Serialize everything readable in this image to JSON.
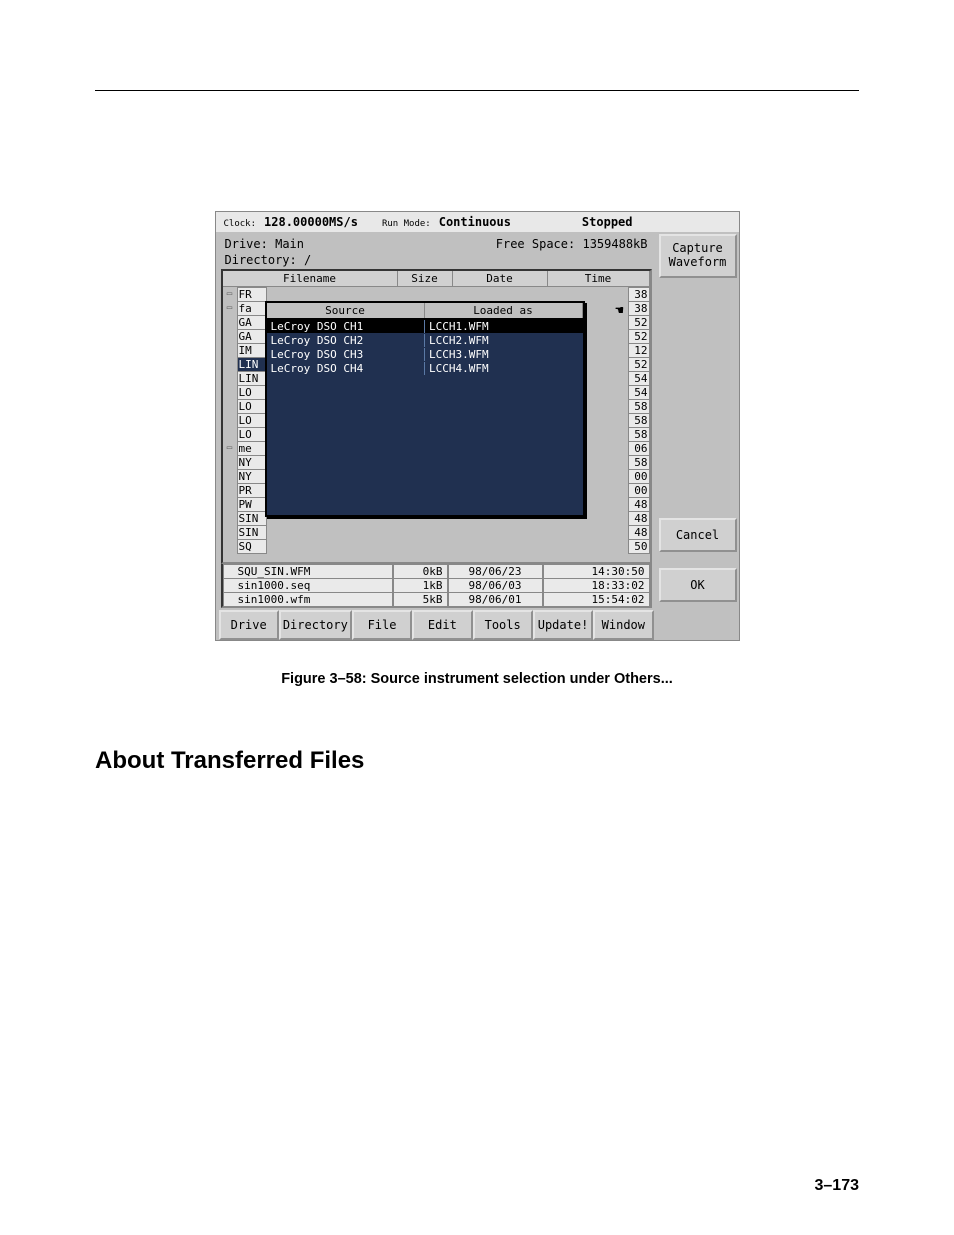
{
  "status": {
    "clock_label": "Clock:",
    "clock_value": "128.00000MS/s",
    "runmode_label": "Run Mode:",
    "runmode_value": "Continuous",
    "state": "Stopped"
  },
  "drive": {
    "label": "Drive:",
    "value": "Main"
  },
  "free_space": {
    "label": "Free Space:",
    "value": "1359488kB"
  },
  "directory": {
    "label": "Directory:",
    "value": "/"
  },
  "file_headers": {
    "name": "Filename",
    "size": "Size",
    "date": "Date",
    "time": "Time"
  },
  "bg_rows": [
    {
      "icon": true,
      "name": "FR",
      "sec": "38",
      "hl": false
    },
    {
      "icon": true,
      "name": "fa",
      "sec": "38",
      "hl": false
    },
    {
      "icon": false,
      "name": "GA",
      "sec": "52",
      "hl": false
    },
    {
      "icon": false,
      "name": "GA",
      "sec": "52",
      "hl": false
    },
    {
      "icon": false,
      "name": "IM",
      "sec": "12",
      "hl": false
    },
    {
      "icon": false,
      "name": "LIN",
      "sec": "52",
      "hl": true
    },
    {
      "icon": false,
      "name": "LIN",
      "sec": "54",
      "hl": false
    },
    {
      "icon": false,
      "name": "LO",
      "sec": "54",
      "hl": false
    },
    {
      "icon": false,
      "name": "LO",
      "sec": "58",
      "hl": false
    },
    {
      "icon": false,
      "name": "LO",
      "sec": "58",
      "hl": false
    },
    {
      "icon": false,
      "name": "LO",
      "sec": "58",
      "hl": false
    },
    {
      "icon": true,
      "name": "me",
      "sec": "06",
      "hl": false
    },
    {
      "icon": false,
      "name": "NY",
      "sec": "58",
      "hl": false
    },
    {
      "icon": false,
      "name": "NY",
      "sec": "00",
      "hl": false
    },
    {
      "icon": false,
      "name": "PR",
      "sec": "00",
      "hl": false
    },
    {
      "icon": false,
      "name": "PW",
      "sec": "48",
      "hl": false
    },
    {
      "icon": false,
      "name": "SIN",
      "sec": "48",
      "hl": false
    },
    {
      "icon": false,
      "name": "SIN",
      "sec": "48",
      "hl": false
    },
    {
      "icon": false,
      "name": "SQ",
      "sec": "50",
      "hl": false
    }
  ],
  "overlay": {
    "hdr_left": "Source",
    "hdr_right": "Loaded as",
    "rows": [
      {
        "src": "LeCroy DSO CH1",
        "as": "LCCH1.WFM",
        "hl": true
      },
      {
        "src": "LeCroy DSO CH2",
        "as": "LCCH2.WFM",
        "hl": false
      },
      {
        "src": "LeCroy DSO CH3",
        "as": "LCCH3.WFM",
        "hl": false
      },
      {
        "src": "LeCroy DSO CH4",
        "as": "LCCH4.WFM",
        "hl": false
      }
    ],
    "empty_rows": 10
  },
  "detail_rows": [
    {
      "name": "SQU_SIN.WFM",
      "size": "0kB",
      "date": "98/06/23",
      "time": "14:30:50"
    },
    {
      "name": "sin1000.seq",
      "size": "1kB",
      "date": "98/06/03",
      "time": "18:33:02"
    },
    {
      "name": "sin1000.wfm",
      "size": "5kB",
      "date": "98/06/01",
      "time": "15:54:02"
    }
  ],
  "menubar": [
    "Drive",
    "Directory",
    "File",
    "Edit",
    "Tools",
    "Update!",
    "Window"
  ],
  "right_buttons": {
    "capture": "Capture\nWaveform",
    "cancel": "Cancel",
    "ok": "OK"
  },
  "caption": "Figure 3–58: Source instrument selection under Others...",
  "section_title": "About Transferred Files",
  "page_num": "3–173",
  "colors": {
    "panel_bg": "#c0c0c0",
    "overlay_bg": "#203050",
    "overlay_hl": "#000000",
    "cell_bg": "#eaeaea"
  }
}
